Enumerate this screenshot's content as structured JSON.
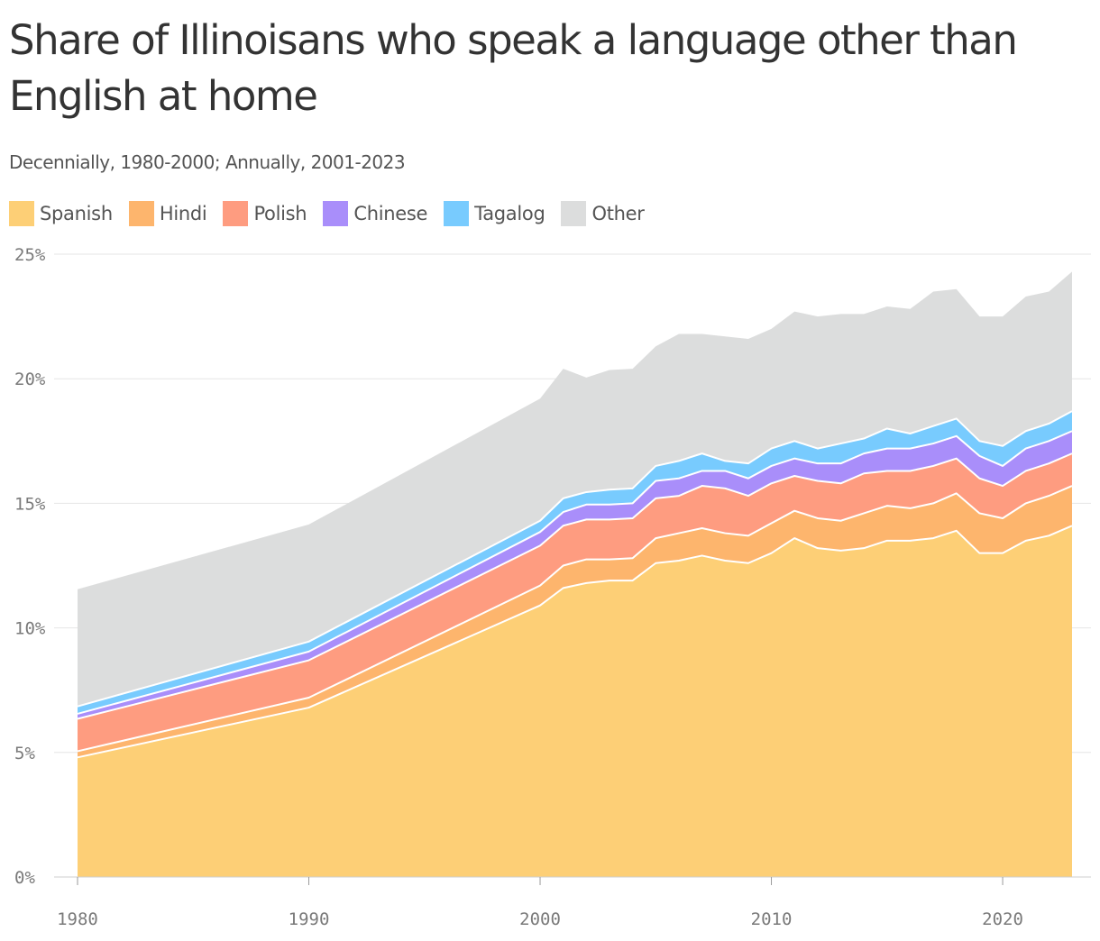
{
  "title": "Share of Illinoisans who speak a language other than English at home",
  "subtitle": "Decennially, 1980-2000; Annually, 2001-2023",
  "chart_data": {
    "type": "area",
    "stacked": true,
    "title": "Share of Illinoisans who speak a language other than English at home",
    "subtitle": "Decennially, 1980-2000; Annually, 2001-2023",
    "xlabel": "",
    "ylabel": "",
    "x": [
      1980,
      1990,
      2000,
      2001,
      2002,
      2003,
      2004,
      2005,
      2006,
      2007,
      2008,
      2009,
      2010,
      2011,
      2012,
      2013,
      2014,
      2015,
      2016,
      2017,
      2018,
      2019,
      2020,
      2021,
      2022,
      2023
    ],
    "xlim": [
      1980,
      2023
    ],
    "ylim": [
      0,
      25
    ],
    "x_ticks": [
      "1980",
      "1990",
      "2000",
      "2010",
      "2020"
    ],
    "x_tick_values": [
      1980,
      1990,
      2000,
      2010,
      2020
    ],
    "y_ticks": [
      "0%",
      "5%",
      "10%",
      "15%",
      "20%",
      "25%"
    ],
    "y_tick_values": [
      0,
      5,
      10,
      15,
      20,
      25
    ],
    "grid": true,
    "legend_position": "top-left",
    "series": [
      {
        "name": "Spanish",
        "color": "#fdcf76",
        "values": [
          4.8,
          6.8,
          10.9,
          11.6,
          11.8,
          11.9,
          11.9,
          12.6,
          12.7,
          12.9,
          12.7,
          12.6,
          13.0,
          13.6,
          13.2,
          13.1,
          13.2,
          13.5,
          13.5,
          13.6,
          13.9,
          13.0,
          13.0,
          13.5,
          13.7,
          14.1
        ]
      },
      {
        "name": "Hindi",
        "color": "#fdb56d",
        "values": [
          0.25,
          0.4,
          0.8,
          0.9,
          0.95,
          0.85,
          0.9,
          1.0,
          1.1,
          1.1,
          1.1,
          1.1,
          1.2,
          1.1,
          1.2,
          1.2,
          1.4,
          1.4,
          1.3,
          1.4,
          1.5,
          1.6,
          1.4,
          1.5,
          1.6,
          1.6
        ]
      },
      {
        "name": "Polish",
        "color": "#fe9c80",
        "values": [
          1.3,
          1.5,
          1.6,
          1.6,
          1.6,
          1.6,
          1.6,
          1.6,
          1.5,
          1.7,
          1.8,
          1.6,
          1.6,
          1.4,
          1.5,
          1.5,
          1.6,
          1.4,
          1.5,
          1.5,
          1.4,
          1.4,
          1.3,
          1.3,
          1.3,
          1.3
        ]
      },
      {
        "name": "Chinese",
        "color": "#a98efa",
        "values": [
          0.2,
          0.35,
          0.55,
          0.55,
          0.6,
          0.6,
          0.6,
          0.7,
          0.7,
          0.6,
          0.7,
          0.7,
          0.7,
          0.7,
          0.7,
          0.8,
          0.8,
          0.9,
          0.9,
          0.9,
          0.9,
          0.9,
          0.8,
          0.9,
          0.9,
          0.9
        ]
      },
      {
        "name": "Tagalog",
        "color": "#78cbfe",
        "values": [
          0.3,
          0.4,
          0.45,
          0.55,
          0.5,
          0.6,
          0.6,
          0.6,
          0.7,
          0.7,
          0.4,
          0.6,
          0.7,
          0.7,
          0.6,
          0.8,
          0.6,
          0.8,
          0.6,
          0.7,
          0.7,
          0.6,
          0.8,
          0.7,
          0.7,
          0.8
        ]
      },
      {
        "name": "Other",
        "color": "#dcdddd",
        "values": [
          4.7,
          4.7,
          4.9,
          5.2,
          4.6,
          4.8,
          4.8,
          4.8,
          5.1,
          4.8,
          5.0,
          5.0,
          4.8,
          5.2,
          5.3,
          5.2,
          5.0,
          4.9,
          5.0,
          5.4,
          5.2,
          5.0,
          5.2,
          5.4,
          5.3,
          5.6
        ]
      }
    ]
  }
}
